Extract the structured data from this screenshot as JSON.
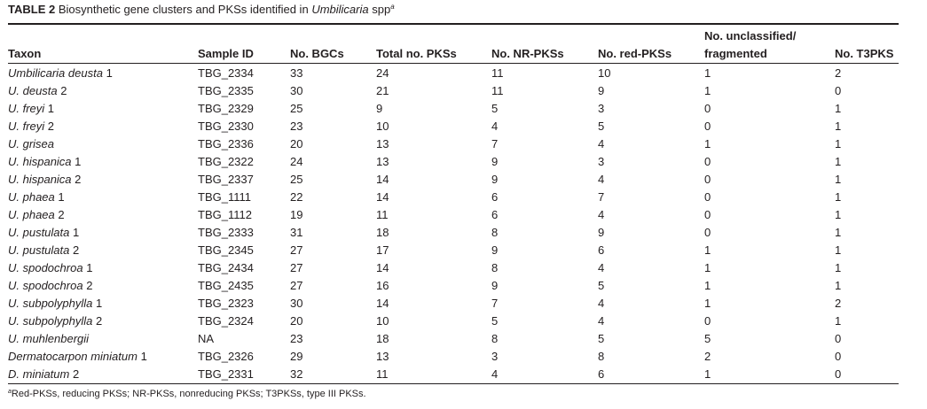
{
  "caption": {
    "label": "TABLE 2",
    "text": "Biosynthetic gene clusters and PKSs identified in",
    "genus": "Umbilicaria",
    "suffix": "spp",
    "footnote_mark": "a"
  },
  "columns": [
    {
      "key": "taxon",
      "label": "Taxon"
    },
    {
      "key": "sample_id",
      "label": "Sample ID"
    },
    {
      "key": "bgcs",
      "label": "No. BGCs"
    },
    {
      "key": "total_pks",
      "label": "Total no. PKSs"
    },
    {
      "key": "nr_pks",
      "label": "No. NR-PKSs"
    },
    {
      "key": "red_pks",
      "label": "No. red-PKSs"
    },
    {
      "key": "unclassified",
      "label_line1": "No. unclassified/",
      "label_line2": "fragmented"
    },
    {
      "key": "t3pks",
      "label": "No. T3PKS"
    }
  ],
  "rows": [
    {
      "taxon": "Umbilicaria deusta",
      "num": "1",
      "sample_id": "TBG_2334",
      "bgcs": "33",
      "total_pks": "24",
      "nr_pks": "11",
      "red_pks": "10",
      "unclassified": "1",
      "t3pks": "2"
    },
    {
      "taxon": "U. deusta",
      "num": "2",
      "sample_id": "TBG_2335",
      "bgcs": "30",
      "total_pks": "21",
      "nr_pks": "11",
      "red_pks": "9",
      "unclassified": "1",
      "t3pks": "0"
    },
    {
      "taxon": "U. freyi",
      "num": "1",
      "sample_id": "TBG_2329",
      "bgcs": "25",
      "total_pks": "9",
      "nr_pks": "5",
      "red_pks": "3",
      "unclassified": "0",
      "t3pks": "1"
    },
    {
      "taxon": "U. freyi",
      "num": "2",
      "sample_id": "TBG_2330",
      "bgcs": "23",
      "total_pks": "10",
      "nr_pks": "4",
      "red_pks": "5",
      "unclassified": "0",
      "t3pks": "1"
    },
    {
      "taxon": "U. grisea",
      "num": "",
      "sample_id": "TBG_2336",
      "bgcs": "20",
      "total_pks": "13",
      "nr_pks": "7",
      "red_pks": "4",
      "unclassified": "1",
      "t3pks": "1"
    },
    {
      "taxon": "U. hispanica",
      "num": "1",
      "sample_id": "TBG_2322",
      "bgcs": "24",
      "total_pks": "13",
      "nr_pks": "9",
      "red_pks": "3",
      "unclassified": "0",
      "t3pks": "1"
    },
    {
      "taxon": "U. hispanica",
      "num": "2",
      "sample_id": "TBG_2337",
      "bgcs": "25",
      "total_pks": "14",
      "nr_pks": "9",
      "red_pks": "4",
      "unclassified": "0",
      "t3pks": "1"
    },
    {
      "taxon": "U. phaea",
      "num": "1",
      "sample_id": "TBG_1111",
      "bgcs": "22",
      "total_pks": "14",
      "nr_pks": "6",
      "red_pks": "7",
      "unclassified": "0",
      "t3pks": "1"
    },
    {
      "taxon": "U. phaea",
      "num": "2",
      "sample_id": "TBG_1112",
      "bgcs": "19",
      "total_pks": "11",
      "nr_pks": "6",
      "red_pks": "4",
      "unclassified": "0",
      "t3pks": "1"
    },
    {
      "taxon": "U. pustulata",
      "num": "1",
      "sample_id": "TBG_2333",
      "bgcs": "31",
      "total_pks": "18",
      "nr_pks": "8",
      "red_pks": "9",
      "unclassified": "0",
      "t3pks": "1"
    },
    {
      "taxon": "U. pustulata",
      "num": "2",
      "sample_id": "TBG_2345",
      "bgcs": "27",
      "total_pks": "17",
      "nr_pks": "9",
      "red_pks": "6",
      "unclassified": "1",
      "t3pks": "1"
    },
    {
      "taxon": "U. spodochroa",
      "num": "1",
      "sample_id": "TBG_2434",
      "bgcs": "27",
      "total_pks": "14",
      "nr_pks": "8",
      "red_pks": "4",
      "unclassified": "1",
      "t3pks": "1"
    },
    {
      "taxon": "U. spodochroa",
      "num": "2",
      "sample_id": "TBG_2435",
      "bgcs": "27",
      "total_pks": "16",
      "nr_pks": "9",
      "red_pks": "5",
      "unclassified": "1",
      "t3pks": "1"
    },
    {
      "taxon": "U. subpolyphylla",
      "num": "1",
      "sample_id": "TBG_2323",
      "bgcs": "30",
      "total_pks": "14",
      "nr_pks": "7",
      "red_pks": "4",
      "unclassified": "1",
      "t3pks": "2"
    },
    {
      "taxon": "U. subpolyphylla",
      "num": "2",
      "sample_id": "TBG_2324",
      "bgcs": "20",
      "total_pks": "10",
      "nr_pks": "5",
      "red_pks": "4",
      "unclassified": "0",
      "t3pks": "1"
    },
    {
      "taxon": "U. muhlenbergii",
      "num": "",
      "sample_id": "NA",
      "bgcs": "23",
      "total_pks": "18",
      "nr_pks": "8",
      "red_pks": "5",
      "unclassified": "5",
      "t3pks": "0"
    },
    {
      "taxon": "Dermatocarpon miniatum",
      "num": "1",
      "sample_id": "TBG_2326",
      "bgcs": "29",
      "total_pks": "13",
      "nr_pks": "3",
      "red_pks": "8",
      "unclassified": "2",
      "t3pks": "0"
    },
    {
      "taxon": "D. miniatum",
      "num": "2",
      "sample_id": "TBG_2331",
      "bgcs": "32",
      "total_pks": "11",
      "nr_pks": "4",
      "red_pks": "6",
      "unclassified": "1",
      "t3pks": "0"
    }
  ],
  "footnote": {
    "mark": "a",
    "text": "Red-PKSs, reducing PKSs; NR-PKSs, nonreducing PKSs; T3PKSs, type III PKSs."
  }
}
